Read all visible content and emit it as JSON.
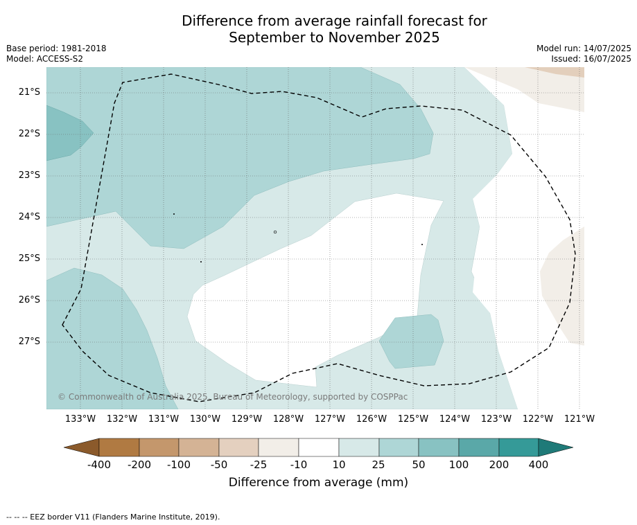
{
  "title": {
    "line1": "Difference from average rainfall forecast for",
    "line2": "September to November 2025"
  },
  "meta": {
    "base_period": "Base period: 1981-2018",
    "model": "Model: ACCESS-S2",
    "model_run": "Model run: 14/07/2025",
    "issued": "Issued: 16/07/2025"
  },
  "map": {
    "latitude_labels": [
      "21°S",
      "22°S",
      "23°S",
      "24°S",
      "25°S",
      "26°S",
      "27°S"
    ],
    "longitude_labels": [
      "133°W",
      "132°W",
      "131°W",
      "130°W",
      "129°W",
      "128°W",
      "127°W",
      "126°W",
      "125°W",
      "124°W",
      "123°W",
      "122°W",
      "121°W"
    ],
    "copyright": "© Commonwealth of Australia 2025, Bureau of Meteorology, supported by COSPPac",
    "colors": {
      "10_25": "#d7e9e8",
      "25_50": "#aed6d6",
      "50_100": "#88c2c2",
      "-25_-10": "#f2eee8",
      "-50_-25": "#e3cfbc"
    }
  },
  "colorbar": {
    "ticks": [
      "-400",
      "-200",
      "-100",
      "-50",
      "-25",
      "-10",
      "10",
      "25",
      "50",
      "100",
      "200",
      "400"
    ],
    "colors": [
      "#8b5a2b",
      "#b07a42",
      "#c4976c",
      "#d4b395",
      "#e4d0bf",
      "#f2eee8",
      "#ffffff",
      "#d7e9e8",
      "#aed6d6",
      "#88c2c2",
      "#5aa8a8",
      "#359a98",
      "#1f7a78"
    ],
    "label": "Difference from average (mm)"
  },
  "footnote": "-- -- -- EEZ border V11 (Flanders Marine Institute, 2019)."
}
